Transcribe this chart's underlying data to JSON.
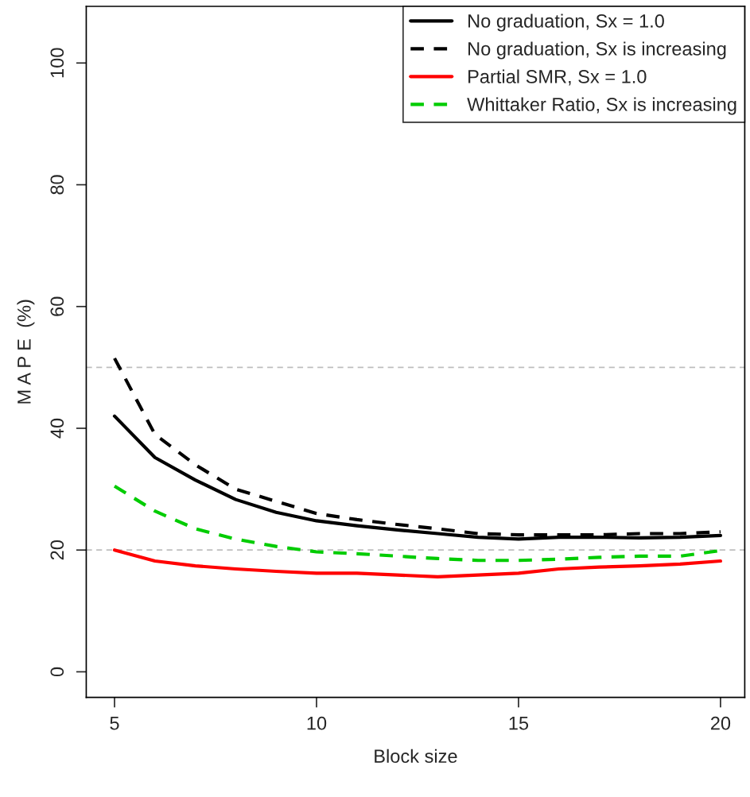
{
  "chart_data": {
    "type": "line",
    "xlabel": "Block size",
    "ylabel": "M A P E  (%)",
    "x": [
      5,
      6,
      7,
      8,
      9,
      10,
      11,
      12,
      13,
      14,
      15,
      16,
      17,
      18,
      19,
      20
    ],
    "series": [
      {
        "name": "No graduation, Sx = 1.0",
        "color": "#000000",
        "line_style": "solid",
        "values": [
          42.0,
          35.2,
          31.5,
          28.3,
          26.2,
          24.8,
          24.0,
          23.3,
          22.7,
          22.1,
          21.8,
          22.1,
          22.1,
          22.0,
          22.1,
          22.4
        ]
      },
      {
        "name": "No graduation, Sx is increasing",
        "color": "#000000",
        "line_style": "dashed",
        "values": [
          51.5,
          39.0,
          34.0,
          30.0,
          28.0,
          26.0,
          25.0,
          24.2,
          23.5,
          22.7,
          22.5,
          22.5,
          22.5,
          22.7,
          22.7,
          23.0
        ]
      },
      {
        "name": "Partial SMR, Sx = 1.0",
        "color": "#ff0000",
        "line_style": "solid",
        "values": [
          20.0,
          18.2,
          17.4,
          16.9,
          16.5,
          16.2,
          16.2,
          15.9,
          15.6,
          15.9,
          16.2,
          16.9,
          17.2,
          17.4,
          17.7,
          18.2
        ]
      },
      {
        "name": "Whittaker Ratio, Sx is increasing",
        "color": "#00cc00",
        "line_style": "dashed",
        "values": [
          30.5,
          26.4,
          23.5,
          21.8,
          20.6,
          19.7,
          19.4,
          19.0,
          18.6,
          18.3,
          18.3,
          18.5,
          18.8,
          19.0,
          19.0,
          19.9
        ]
      }
    ],
    "xlim": [
      4.3,
      20.6
    ],
    "xticks": [
      5,
      10,
      15,
      20
    ],
    "ylim": [
      -4.2,
      109.3
    ],
    "yticks": [
      0,
      20,
      40,
      60,
      80,
      100
    ],
    "ref_lines": [
      {
        "axis": "y",
        "value": 20,
        "color": "#bebebe",
        "line_style": "dashed"
      },
      {
        "axis": "y",
        "value": 50,
        "color": "#bebebe",
        "line_style": "dashed"
      }
    ],
    "legend": "top right",
    "grid": false
  }
}
